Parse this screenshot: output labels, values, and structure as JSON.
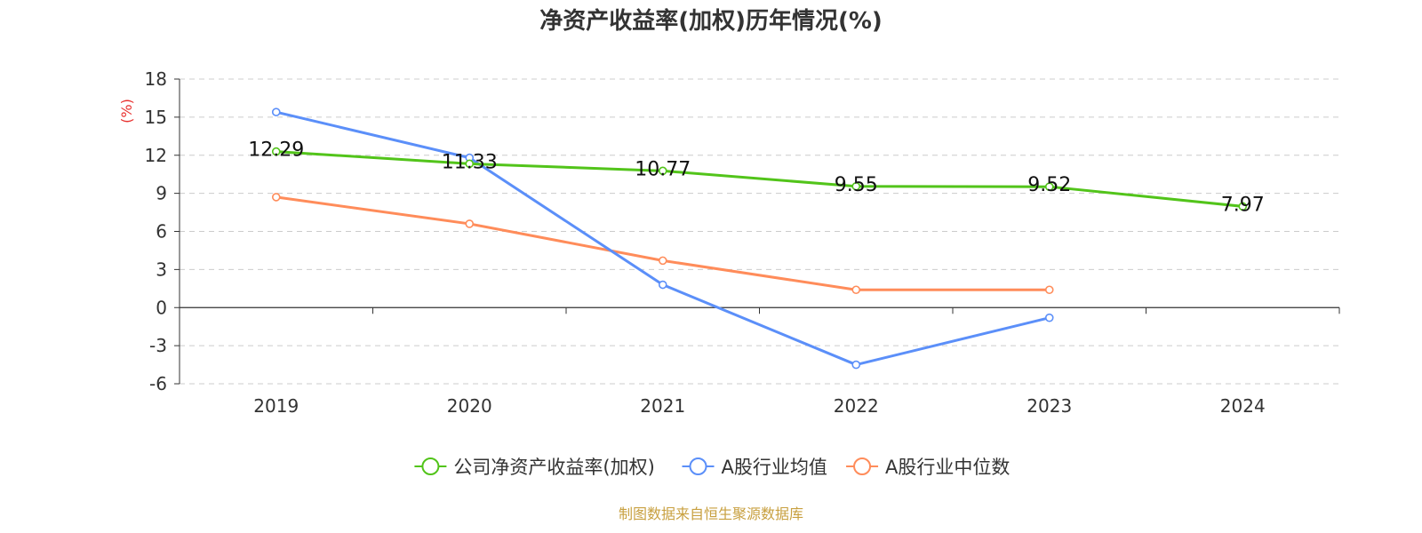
{
  "chart_data": {
    "type": "line",
    "title": "净资产收益率(加权)历年情况(%)",
    "ylabel": "(%)",
    "xlabel": "",
    "categories": [
      "2019",
      "2020",
      "2021",
      "2022",
      "2023",
      "2024"
    ],
    "ylim": [
      -6,
      18
    ],
    "yticks": [
      -6,
      -3,
      0,
      3,
      6,
      9,
      12,
      15,
      18
    ],
    "grid": true,
    "legend_position": "bottom",
    "series": [
      {
        "name": "公司净资产收益率(加权)",
        "color": "#52c41a",
        "values": [
          12.29,
          11.33,
          10.77,
          9.55,
          9.52,
          7.97
        ],
        "show_labels": true
      },
      {
        "name": "A股行业均值",
        "color": "#5b8ff9",
        "values": [
          15.4,
          11.8,
          1.8,
          -4.5,
          -0.8,
          null
        ],
        "show_labels": false
      },
      {
        "name": "A股行业中位数",
        "color": "#ff8c5a",
        "values": [
          8.7,
          6.6,
          3.7,
          1.4,
          1.4,
          null
        ],
        "show_labels": false
      }
    ]
  },
  "source_text": "制图数据来自恒生聚源数据库",
  "source_color": "#c8a040"
}
